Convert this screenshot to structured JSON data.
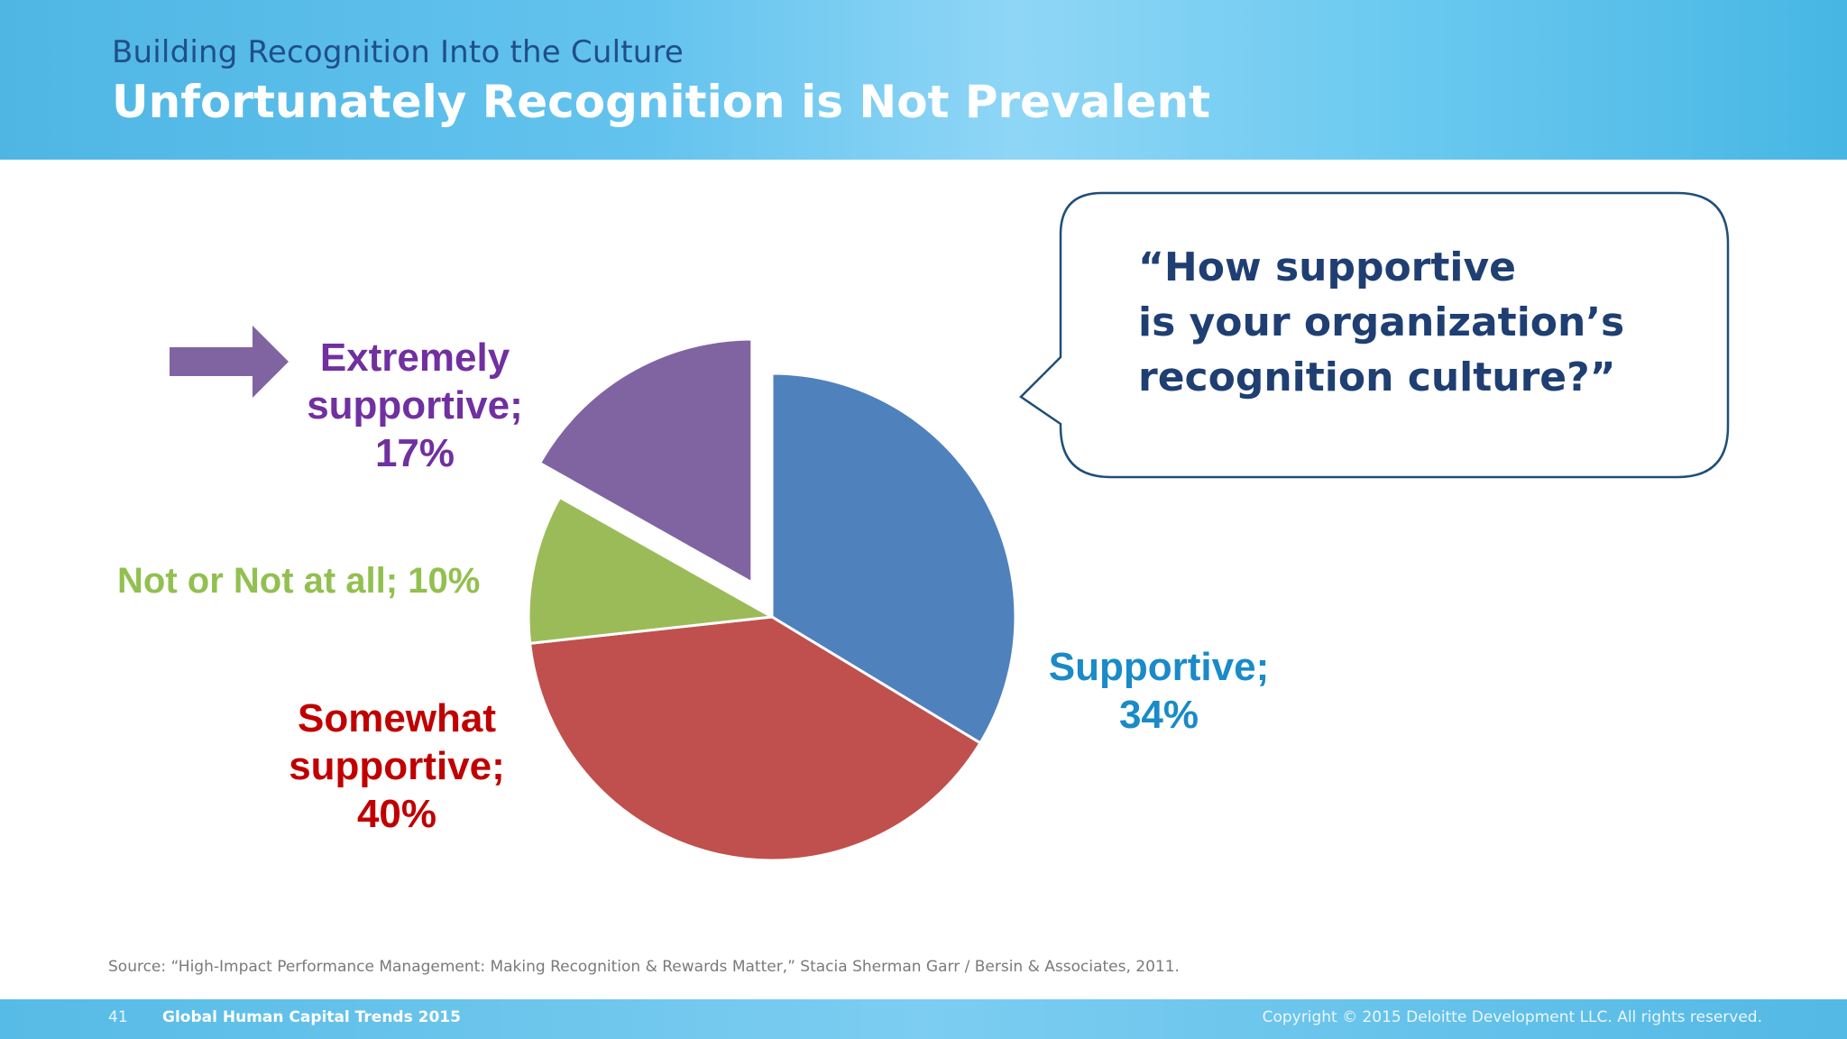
{
  "header": {
    "subtitle": "Building Recognition Into the Culture",
    "title": "Unfortunately Recognition is Not Prevalent"
  },
  "chart_data": {
    "type": "pie",
    "slices": [
      {
        "label": "Supportive",
        "value": 34,
        "color": "#4f81bd",
        "label_color": "#1a8ac8",
        "label_lines": [
          "Supportive;",
          "34%"
        ]
      },
      {
        "label": "Somewhat supportive",
        "value": 40,
        "color": "#c0504d",
        "label_color": "#c00000",
        "label_lines": [
          "Somewhat",
          "supportive;",
          "40%"
        ]
      },
      {
        "label": "Not or Not at all",
        "value": 10,
        "color": "#9bbb59",
        "label_color": "#92c050",
        "label_lines": [
          "Not or Not at all; 10%"
        ]
      },
      {
        "label": "Extremely supportive",
        "value": 17,
        "color": "#8064a2",
        "label_color": "#7030a0",
        "label_lines": [
          "Extremely",
          "supportive;",
          "17%"
        ],
        "exploded": true,
        "highlighted": true
      }
    ]
  },
  "callout": {
    "lines": [
      "“How supportive",
      "is your organization’s",
      "recognition culture?”"
    ]
  },
  "source": "Source:  “High-Impact Performance Management:  Making Recognition & Rewards Matter,” Stacia Sherman Garr / Bersin & Associates, 2011.",
  "footer": {
    "page_number": "41",
    "document_title": "Global Human Capital Trends 2015",
    "copyright": "Copyright © 2015 Deloitte Development LLC. All rights reserved."
  },
  "colors": {
    "arrow": "#8064a2",
    "callout_border": "#1f4e79",
    "callout_text": "#1f3f72"
  }
}
